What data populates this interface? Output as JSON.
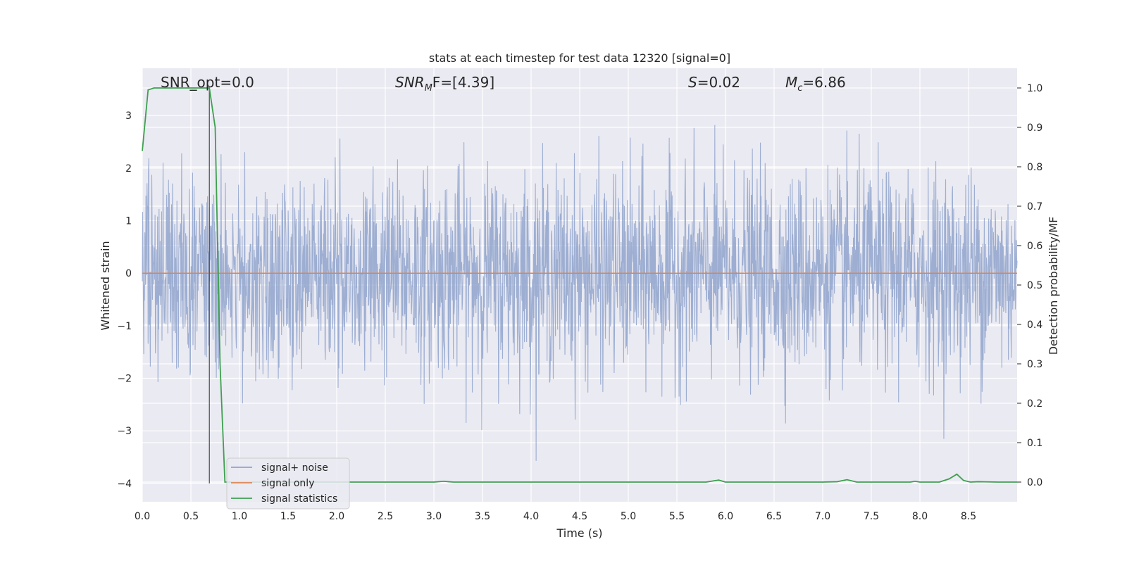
{
  "chart_data": {
    "type": "line",
    "title": "stats at each timestep for test data 12320 [signal=0]",
    "xlabel": "Time (s)",
    "ylabel": "Whitened strain",
    "ylabel_right": "Detection probability/MF",
    "xlim": [
      0.0,
      9.0
    ],
    "ylim": [
      -4.35,
      3.9
    ],
    "ylim_right": [
      -0.05,
      1.05
    ],
    "x_ticks": [
      0.0,
      0.5,
      1.0,
      1.5,
      2.0,
      2.5,
      3.0,
      3.5,
      4.0,
      4.5,
      5.0,
      5.5,
      6.0,
      6.5,
      7.0,
      7.5,
      8.0,
      8.5
    ],
    "x_tick_labels": [
      "0.0",
      "0.5",
      "1.0",
      "1.5",
      "2.0",
      "2.5",
      "3.0",
      "3.5",
      "4.0",
      "4.5",
      "5.0",
      "5.5",
      "6.0",
      "6.5",
      "7.0",
      "7.5",
      "8.0",
      "8.5"
    ],
    "y_ticks": [
      3,
      2,
      1,
      0,
      -1,
      -2,
      -3,
      -4
    ],
    "y_tick_labels": [
      "3",
      "2",
      "1",
      "0",
      "−1",
      "−2",
      "−3",
      "−4"
    ],
    "y_right_ticks": [
      1.0,
      0.9,
      0.8,
      0.7,
      0.6,
      0.5,
      0.4,
      0.3,
      0.2,
      0.1,
      0.0
    ],
    "y_right_tick_labels": [
      "1.0",
      "0.9",
      "0.8",
      "0.7",
      "0.6",
      "0.5",
      "0.4",
      "0.3",
      "0.2",
      "0.1",
      "0.0"
    ],
    "grid": true,
    "legend_position": "lower-left",
    "annotations": {
      "snr_opt": "SNR_opt=0.0",
      "snr_mf_main": "SNR",
      "snr_mf_sub": "M",
      "snr_mf_rest": "F=[4.39]",
      "s_var": "S",
      "s_value": "=0.02",
      "mc_var": "M",
      "mc_sub": "c",
      "mc_value": "=6.86"
    },
    "marker_time": 0.69,
    "series": [
      {
        "name": "signal+ noise",
        "color": "#8fa3cc",
        "kind": "noise",
        "description_range": [
          -4.0,
          3.5
        ]
      },
      {
        "name": "signal only",
        "color": "#dd8452",
        "kind": "constant",
        "x": [
          0.0,
          9.0
        ],
        "y": [
          0.0,
          0.0
        ]
      },
      {
        "name": "signal statistics",
        "color": "#3ea04f",
        "axis": "right",
        "x": [
          0.0,
          0.06,
          0.12,
          0.2,
          0.3,
          0.4,
          0.5,
          0.6,
          0.69,
          0.75,
          0.8,
          0.85,
          1.0,
          2.0,
          3.0,
          3.1,
          3.2,
          4.0,
          5.0,
          5.8,
          5.93,
          6.0,
          7.0,
          7.15,
          7.25,
          7.35,
          7.5,
          7.9,
          7.95,
          8.0,
          8.2,
          8.3,
          8.38,
          8.45,
          8.52,
          8.6,
          8.8,
          9.0
        ],
        "y": [
          0.84,
          0.995,
          1.0,
          1.0,
          1.0,
          1.0,
          1.0,
          1.0,
          1.0,
          0.9,
          0.3,
          0.0,
          0.0,
          0.0,
          0.0,
          0.002,
          0.0,
          0.0,
          0.0,
          0.0,
          0.005,
          0.0,
          0.0,
          0.001,
          0.006,
          0.0,
          0.0,
          0.0,
          0.002,
          0.0,
          0.0,
          0.008,
          0.02,
          0.004,
          0.0,
          0.001,
          0.0,
          0.0
        ]
      }
    ]
  }
}
